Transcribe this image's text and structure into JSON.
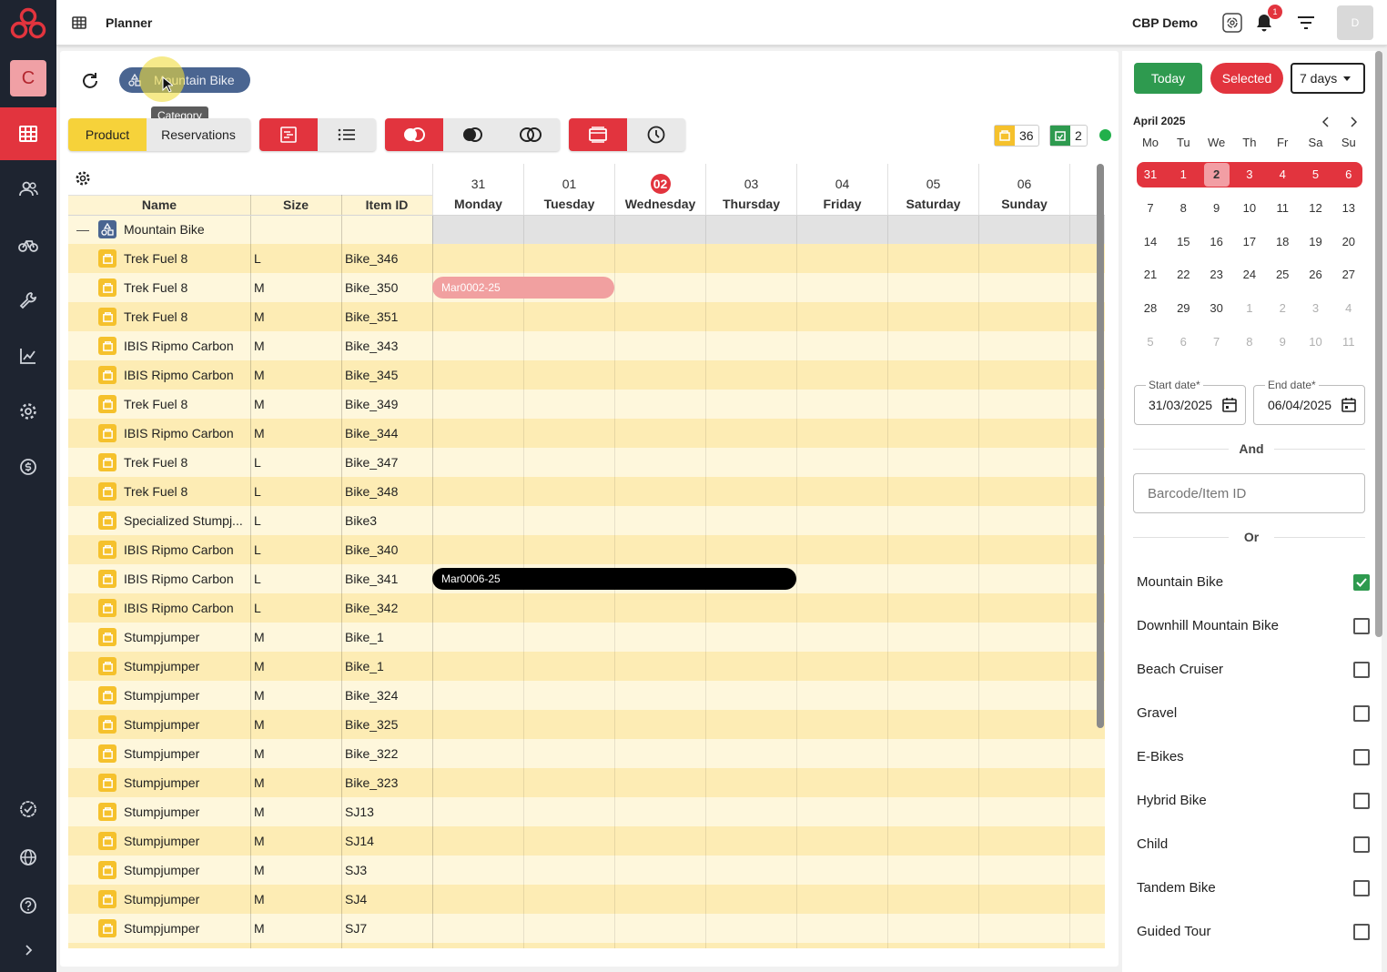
{
  "header": {
    "title": "Planner",
    "tenant": "CBP Demo",
    "notification_count": "1",
    "avatar_initial": "D"
  },
  "sidebar": {
    "workspace_initial": "C",
    "items": [
      "planner-grid-icon",
      "customers-icon",
      "bike-icon",
      "tools-icon",
      "analytics-icon",
      "settings-icon",
      "payments-icon",
      "check-badge-icon",
      "globe-icon",
      "help-icon",
      "expand-icon"
    ]
  },
  "toolbar": {
    "filter_chip": "Mountain Bike",
    "tooltip": "Category",
    "product_tab": "Product",
    "reservations_tab": "Reservations",
    "product_count": "36",
    "reservation_count": "2"
  },
  "grid": {
    "columns": {
      "name": "Name",
      "size": "Size",
      "item_id": "Item ID"
    },
    "days": [
      {
        "num": "31",
        "name": "Monday",
        "today": false
      },
      {
        "num": "01",
        "name": "Tuesday",
        "today": false
      },
      {
        "num": "02",
        "name": "Wednesday",
        "today": true
      },
      {
        "num": "03",
        "name": "Thursday",
        "today": false
      },
      {
        "num": "04",
        "name": "Friday",
        "today": false
      },
      {
        "num": "05",
        "name": "Saturday",
        "today": false
      },
      {
        "num": "06",
        "name": "Sunday",
        "today": false
      }
    ],
    "category_row": {
      "label": "Mountain Bike",
      "collapse": "—"
    },
    "rows": [
      {
        "name": "Trek Fuel 8",
        "size": "L",
        "id": "Bike_346"
      },
      {
        "name": "Trek Fuel 8",
        "size": "M",
        "id": "Bike_350"
      },
      {
        "name": "Trek Fuel 8",
        "size": "M",
        "id": "Bike_351"
      },
      {
        "name": "IBIS Ripmo Carbon",
        "size": "M",
        "id": "Bike_343"
      },
      {
        "name": "IBIS Ripmo Carbon",
        "size": "M",
        "id": "Bike_345"
      },
      {
        "name": "Trek Fuel 8",
        "size": "M",
        "id": "Bike_349"
      },
      {
        "name": "IBIS Ripmo Carbon",
        "size": "M",
        "id": "Bike_344"
      },
      {
        "name": "Trek Fuel 8",
        "size": "L",
        "id": "Bike_347"
      },
      {
        "name": "Trek Fuel 8",
        "size": "L",
        "id": "Bike_348"
      },
      {
        "name": "Specialized Stumpj...",
        "size": "L",
        "id": "Bike3"
      },
      {
        "name": "IBIS Ripmo Carbon",
        "size": "L",
        "id": "Bike_340"
      },
      {
        "name": "IBIS Ripmo Carbon",
        "size": "L",
        "id": "Bike_341"
      },
      {
        "name": "IBIS Ripmo Carbon",
        "size": "L",
        "id": "Bike_342"
      },
      {
        "name": "Stumpjumper",
        "size": "M",
        "id": "Bike_1"
      },
      {
        "name": "Stumpjumper",
        "size": "M",
        "id": "Bike_1"
      },
      {
        "name": "Stumpjumper",
        "size": "M",
        "id": "Bike_324"
      },
      {
        "name": "Stumpjumper",
        "size": "M",
        "id": "Bike_325"
      },
      {
        "name": "Stumpjumper",
        "size": "M",
        "id": "Bike_322"
      },
      {
        "name": "Stumpjumper",
        "size": "M",
        "id": "Bike_323"
      },
      {
        "name": "Stumpjumper",
        "size": "M",
        "id": "SJ13"
      },
      {
        "name": "Stumpjumper",
        "size": "M",
        "id": "SJ14"
      },
      {
        "name": "Stumpjumper",
        "size": "M",
        "id": "SJ3"
      },
      {
        "name": "Stumpjumper",
        "size": "M",
        "id": "SJ4"
      },
      {
        "name": "Stumpjumper",
        "size": "M",
        "id": "SJ7"
      }
    ],
    "reservations": [
      {
        "label": "Mar0002-25",
        "row": 1,
        "start_day": 0,
        "days": 2,
        "color": "#f1a0a0",
        "text_color": "#ffffff"
      },
      {
        "label": "Mar0006-25",
        "row": 11,
        "start_day": 0,
        "days": 4,
        "color": "#000000",
        "text_color": "#ffffff"
      }
    ]
  },
  "right_panel": {
    "today_button": "Today",
    "selected_button": "Selected",
    "range_select": "7 days",
    "calendar": {
      "title": "April 2025",
      "weekdays": [
        "Mo",
        "Tu",
        "We",
        "Th",
        "Fr",
        "Sa",
        "Su"
      ],
      "weeks": [
        [
          "31",
          "1",
          "2",
          "3",
          "4",
          "5",
          "6"
        ],
        [
          "7",
          "8",
          "9",
          "10",
          "11",
          "12",
          "13"
        ],
        [
          "14",
          "15",
          "16",
          "17",
          "18",
          "19",
          "20"
        ],
        [
          "21",
          "22",
          "23",
          "24",
          "25",
          "26",
          "27"
        ],
        [
          "28",
          "29",
          "30",
          "1",
          "2",
          "3",
          "4"
        ],
        [
          "5",
          "6",
          "7",
          "8",
          "9",
          "10",
          "11"
        ]
      ]
    },
    "start_date_label": "Start date*",
    "start_date_value": "31/03/2025",
    "end_date_label": "End date*",
    "end_date_value": "06/04/2025",
    "and_label": "And",
    "barcode_placeholder": "Barcode/Item ID",
    "or_label": "Or",
    "categories": [
      {
        "label": "Mountain Bike",
        "checked": true
      },
      {
        "label": "Downhill Mountain Bike",
        "checked": false
      },
      {
        "label": "Beach Cruiser",
        "checked": false
      },
      {
        "label": "Gravel",
        "checked": false
      },
      {
        "label": "E-Bikes",
        "checked": false
      },
      {
        "label": "Hybrid Bike",
        "checked": false
      },
      {
        "label": "Child",
        "checked": false
      },
      {
        "label": "Tandem Bike",
        "checked": false
      },
      {
        "label": "Guided Tour",
        "checked": false
      }
    ]
  },
  "colors": {
    "accent_red": "#e2343e",
    "accent_yellow": "#f6d23a",
    "today_green": "#2e9a4f",
    "row_light": "#fef7dc",
    "row_dark": "#fdecb4",
    "category_chip": "#4a6591"
  }
}
